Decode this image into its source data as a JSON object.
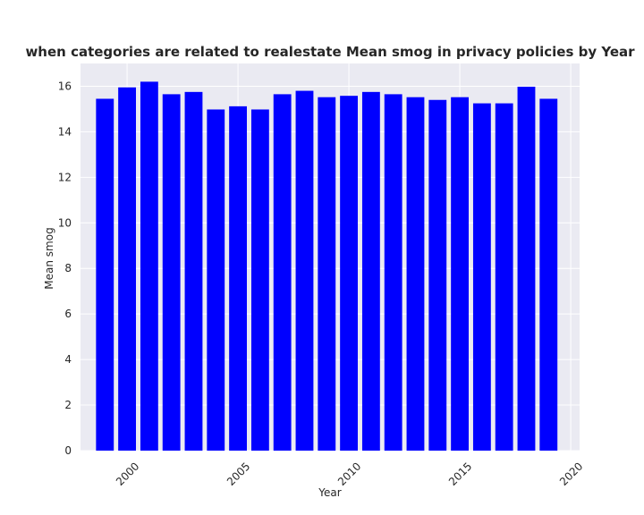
{
  "chart_data": {
    "type": "bar",
    "title": "when categories are related to realestate Mean smog in privacy policies by Year",
    "xlabel": "Year",
    "ylabel": "Mean smog",
    "x": [
      1999,
      2000,
      2001,
      2002,
      2003,
      2004,
      2005,
      2006,
      2007,
      2008,
      2009,
      2010,
      2011,
      2012,
      2013,
      2014,
      2015,
      2016,
      2017,
      2018,
      2019
    ],
    "values": [
      15.45,
      15.95,
      16.2,
      15.65,
      15.75,
      14.98,
      15.12,
      14.98,
      15.65,
      15.8,
      15.52,
      15.58,
      15.75,
      15.65,
      15.52,
      15.4,
      15.52,
      15.25,
      15.25,
      15.98,
      15.45
    ],
    "xlim": [
      1997.9,
      2020.4
    ],
    "ylim": [
      0,
      17
    ],
    "xticks": [
      2000,
      2005,
      2010,
      2015,
      2020
    ],
    "yticks": [
      0,
      2,
      4,
      6,
      8,
      10,
      12,
      14,
      16
    ],
    "bar_color": "#0000ff",
    "background_color": "#eaeaf2",
    "grid": true
  }
}
